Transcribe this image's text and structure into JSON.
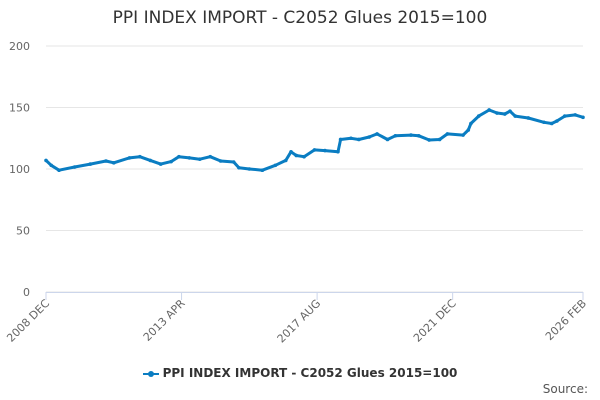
{
  "chart_data": {
    "type": "line",
    "title": "PPI INDEX IMPORT - C2052 Glues 2015=100",
    "xlabel": "",
    "ylabel": "",
    "ylim": [
      0,
      200
    ],
    "yticks": [
      "0",
      "50",
      "100",
      "150",
      "200"
    ],
    "xrange": [
      "2008-12",
      "2026-02"
    ],
    "xticks": [
      {
        "date": "2008-12",
        "label": "2008 DEC"
      },
      {
        "date": "2013-04",
        "label": "2013 APR"
      },
      {
        "date": "2017-08",
        "label": "2017 AUG"
      },
      {
        "date": "2021-12",
        "label": "2021 DEC"
      },
      {
        "date": "2026-02",
        "label": "2026 FEB"
      }
    ],
    "grid": true,
    "legend_position": "bottom",
    "series": [
      {
        "name": "PPI INDEX IMPORT - C2052 Glues 2015=100",
        "color": "#0a7dc2",
        "points": [
          [
            "2008-12",
            107
          ],
          [
            "2009-02",
            103
          ],
          [
            "2009-05",
            99
          ],
          [
            "2009-11",
            101.6
          ],
          [
            "2010-05",
            104
          ],
          [
            "2010-11",
            106.5
          ],
          [
            "2011-02",
            105
          ],
          [
            "2011-08",
            109
          ],
          [
            "2011-12",
            110
          ],
          [
            "2012-04",
            107
          ],
          [
            "2012-08",
            104
          ],
          [
            "2012-12",
            106
          ],
          [
            "2013-03",
            110
          ],
          [
            "2013-07",
            109
          ],
          [
            "2013-11",
            108
          ],
          [
            "2014-03",
            110
          ],
          [
            "2014-07",
            106.5
          ],
          [
            "2014-12",
            105.7
          ],
          [
            "2015-02",
            101
          ],
          [
            "2015-06",
            100
          ],
          [
            "2015-11",
            99
          ],
          [
            "2016-04",
            103
          ],
          [
            "2016-08",
            107
          ],
          [
            "2016-10",
            114
          ],
          [
            "2016-12",
            111
          ],
          [
            "2017-03",
            110
          ],
          [
            "2017-07",
            115.5
          ],
          [
            "2017-11",
            115
          ],
          [
            "2018-04",
            114
          ],
          [
            "2018-05",
            124
          ],
          [
            "2018-09",
            125
          ],
          [
            "2018-12",
            124
          ],
          [
            "2019-04",
            126
          ],
          [
            "2019-07",
            128.5
          ],
          [
            "2019-11",
            124
          ],
          [
            "2020-02",
            127
          ],
          [
            "2020-08",
            127.6
          ],
          [
            "2020-11",
            127
          ],
          [
            "2021-03",
            123.6
          ],
          [
            "2021-07",
            124
          ],
          [
            "2021-10",
            128.5
          ],
          [
            "2022-04",
            127.6
          ],
          [
            "2022-06",
            131.7
          ],
          [
            "2022-07",
            137
          ],
          [
            "2022-10",
            143
          ],
          [
            "2023-02",
            148
          ],
          [
            "2023-05",
            145.5
          ],
          [
            "2023-08",
            144.7
          ],
          [
            "2023-10",
            147
          ],
          [
            "2023-12",
            143
          ],
          [
            "2024-05",
            141.5
          ],
          [
            "2024-11",
            138
          ],
          [
            "2025-02",
            137
          ],
          [
            "2025-04",
            139
          ],
          [
            "2025-07",
            143
          ],
          [
            "2025-11",
            144
          ],
          [
            "2026-02",
            142
          ]
        ]
      }
    ]
  },
  "legend_label": "PPI INDEX IMPORT - C2052 Glues 2015=100",
  "source_label": "Source:"
}
